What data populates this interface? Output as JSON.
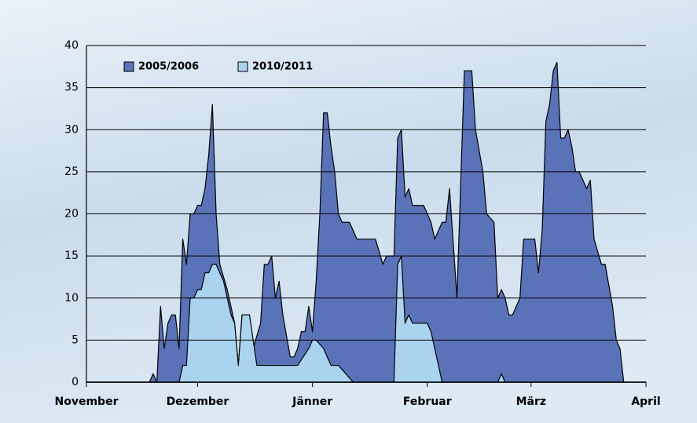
{
  "chart_data": {
    "type": "area",
    "xlim": [
      0,
      151
    ],
    "xticks": [
      {
        "value": 0,
        "label": "November"
      },
      {
        "value": 30,
        "label": "Dezember"
      },
      {
        "value": 61,
        "label": "Jänner"
      },
      {
        "value": 92,
        "label": "Februar"
      },
      {
        "value": 120,
        "label": "März"
      },
      {
        "value": 151,
        "label": "April"
      }
    ],
    "ylim": [
      0,
      40
    ],
    "yticks": [
      0,
      5,
      10,
      15,
      20,
      25,
      30,
      35,
      40
    ],
    "grid": true,
    "series": [
      {
        "name": "2005/2006",
        "color": "#5a72b8",
        "x": [
          0,
          17,
          18,
          19,
          20,
          21,
          22,
          23,
          24,
          25,
          26,
          27,
          28,
          29,
          30,
          31,
          32,
          33,
          34,
          35,
          36,
          38,
          40,
          41,
          42,
          44,
          45,
          47,
          48,
          49,
          50,
          51,
          52,
          53,
          55,
          56,
          57,
          58,
          59,
          60,
          61,
          62,
          63,
          64,
          65,
          66,
          67,
          68,
          69,
          71,
          73,
          78,
          80,
          81,
          83,
          84,
          85,
          86,
          87,
          88,
          91,
          93,
          94,
          96,
          97,
          98,
          100,
          102,
          104,
          105,
          107,
          108,
          110,
          111,
          112,
          113,
          114,
          115,
          117,
          118,
          121,
          122,
          123,
          124,
          125,
          126,
          127,
          128,
          129,
          130,
          131,
          132,
          133,
          135,
          136,
          137,
          139,
          140,
          142,
          143,
          144,
          145,
          151
        ],
        "values": [
          0,
          0,
          1,
          0,
          9,
          4,
          7,
          8,
          8,
          4,
          17,
          14,
          20,
          20,
          21,
          21,
          23,
          27,
          33,
          20,
          14,
          11,
          7,
          2,
          8,
          8,
          4,
          7,
          14,
          14,
          15,
          10,
          12,
          8,
          3,
          3,
          4,
          6,
          6,
          9,
          6,
          12,
          20,
          32,
          32,
          28,
          25,
          20,
          19,
          19,
          17,
          17,
          14,
          15,
          15,
          29,
          30,
          22,
          23,
          21,
          21,
          19,
          17,
          19,
          19,
          23,
          10,
          37,
          37,
          30,
          25,
          20,
          19,
          10,
          11,
          10,
          8,
          8,
          10,
          17,
          17,
          13,
          18,
          31,
          33,
          37,
          38,
          29,
          29,
          30,
          28,
          25,
          25,
          23,
          24,
          17,
          14,
          14,
          9,
          5,
          4,
          0,
          0
        ]
      },
      {
        "name": "2010/2011",
        "color": "#a9d3ee",
        "x": [
          0,
          25,
          26,
          27,
          28,
          29,
          30,
          31,
          32,
          33,
          34,
          35,
          36,
          37,
          38,
          39,
          40,
          41,
          42,
          44,
          45,
          46,
          57,
          60,
          61,
          62,
          64,
          65,
          66,
          68,
          72,
          83,
          84,
          85,
          86,
          87,
          88,
          92,
          93,
          94,
          95,
          96,
          111,
          112,
          113,
          151
        ],
        "values": [
          0,
          0,
          2,
          2,
          10,
          10,
          11,
          11,
          13,
          13,
          14,
          14,
          13,
          12,
          10,
          8,
          7,
          2,
          8,
          8,
          5,
          2,
          2,
          4,
          5,
          5,
          4,
          3,
          2,
          2,
          0,
          0,
          14,
          15,
          7,
          8,
          7,
          7,
          6,
          4,
          2,
          0,
          0,
          1,
          0,
          0
        ]
      }
    ]
  }
}
